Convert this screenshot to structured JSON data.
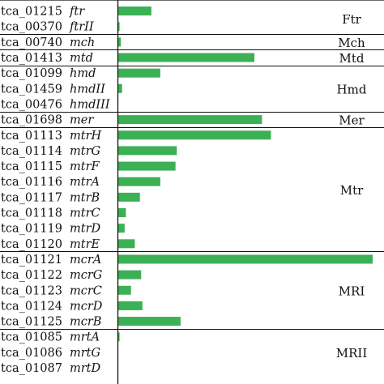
{
  "chart_data": {
    "type": "bar",
    "orientation": "horizontal",
    "title": "",
    "xlabel": "",
    "ylabel": "",
    "bar_color": "#3cb054",
    "categories": [
      {
        "tag": "tca_01215",
        "gene": "ftr"
      },
      {
        "tag": "tca_00370",
        "gene": "ftrII"
      },
      {
        "tag": "tca_00740",
        "gene": "mch"
      },
      {
        "tag": "tca_01413",
        "gene": "mtd"
      },
      {
        "tag": "tca_01099",
        "gene": "hmd"
      },
      {
        "tag": "tca_01459",
        "gene": "hmdII"
      },
      {
        "tag": "tca_00476",
        "gene": "hmdIII"
      },
      {
        "tag": "tca_01698",
        "gene": "mer"
      },
      {
        "tag": "tca_01113",
        "gene": "mtrH"
      },
      {
        "tag": "tca_01114",
        "gene": "mtrG"
      },
      {
        "tag": "tca_01115",
        "gene": "mtrF"
      },
      {
        "tag": "tca_01116",
        "gene": "mtrA"
      },
      {
        "tag": "tca_01117",
        "gene": "mtrB"
      },
      {
        "tag": "tca_01118",
        "gene": "mtrC"
      },
      {
        "tag": "tca_01119",
        "gene": "mtrD"
      },
      {
        "tag": "tca_01120",
        "gene": "mtrE"
      },
      {
        "tag": "tca_01121",
        "gene": "mcrA"
      },
      {
        "tag": "tca_01122",
        "gene": "mcrG"
      },
      {
        "tag": "tca_01123",
        "gene": "mcrC"
      },
      {
        "tag": "tca_01124",
        "gene": "mcrD"
      },
      {
        "tag": "tca_01125",
        "gene": "mcrB"
      },
      {
        "tag": "tca_01085",
        "gene": "mrtA"
      },
      {
        "tag": "tca_01086",
        "gene": "mrtG"
      },
      {
        "tag": "tca_01087",
        "gene": "mrtD"
      }
    ],
    "values": [
      13.0,
      0.5,
      1.0,
      53.5,
      16.5,
      1.5,
      0,
      56.5,
      60.0,
      23.0,
      22.5,
      16.5,
      8.5,
      3.0,
      2.5,
      6.5,
      100,
      9.0,
      5.0,
      9.5,
      24.5,
      0.5,
      0,
      0
    ],
    "xlim": [
      0,
      100
    ],
    "groups": [
      {
        "label": "Ftr",
        "start": 0,
        "end": 1
      },
      {
        "label": "Mch",
        "start": 2,
        "end": 2
      },
      {
        "label": "Mtd",
        "start": 3,
        "end": 3
      },
      {
        "label": "Hmd",
        "start": 4,
        "end": 6
      },
      {
        "label": "Mer",
        "start": 7,
        "end": 7
      },
      {
        "label": "Mtr",
        "start": 8,
        "end": 15
      },
      {
        "label": "MRI",
        "start": 16,
        "end": 20
      },
      {
        "label": "MRII",
        "start": 21,
        "end": 23
      }
    ],
    "grid": false,
    "legend": "none"
  }
}
